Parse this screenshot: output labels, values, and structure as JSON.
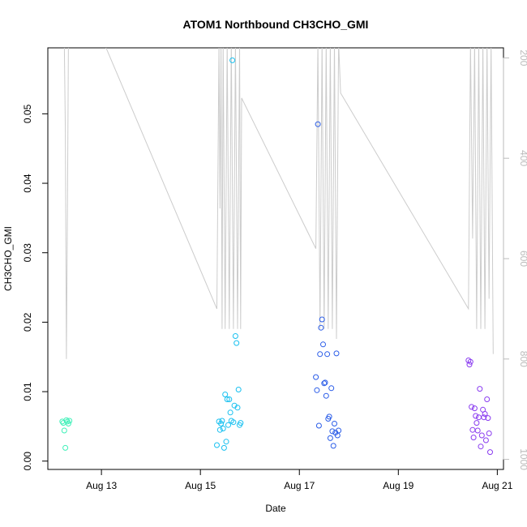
{
  "chart_data": {
    "type": "scatter",
    "title": "ATOM1 Northbound CH3CHO_GMI",
    "xlabel": "Date",
    "ylabel": "CH3CHO_GMI",
    "xlim": [
      "2016-08-11T22:00",
      "2016-08-21T03:00"
    ],
    "ylim": [
      -0.0012,
      0.0595
    ],
    "x_ticks": [
      {
        "value": "2016-08-13",
        "label": "Aug 13"
      },
      {
        "value": "2016-08-15",
        "label": "Aug 15"
      },
      {
        "value": "2016-08-17",
        "label": "Aug 17"
      },
      {
        "value": "2016-08-19",
        "label": "Aug 19"
      },
      {
        "value": "2016-08-21",
        "label": "Aug 21"
      }
    ],
    "y_ticks": [
      {
        "value": 0.0,
        "label": "0.00"
      },
      {
        "value": 0.01,
        "label": "0.01"
      },
      {
        "value": 0.02,
        "label": "0.02"
      },
      {
        "value": 0.03,
        "label": "0.03"
      },
      {
        "value": 0.04,
        "label": "0.04"
      },
      {
        "value": 0.05,
        "label": "0.05"
      }
    ],
    "right_axis": {
      "reversed": true,
      "ylim": [
        180,
        1020
      ],
      "ticks": [
        {
          "value": 200,
          "label": "200"
        },
        {
          "value": 400,
          "label": "400"
        },
        {
          "value": 600,
          "label": "600"
        },
        {
          "value": 800,
          "label": "800"
        },
        {
          "value": 1000,
          "label": "1000"
        }
      ],
      "color": "#bbbbbb"
    },
    "pressure_line": {
      "color": "#cccccc",
      "points": [
        [
          "2016-08-12T06:00",
          168
        ],
        [
          "2016-08-12T06:30",
          345
        ],
        [
          "2016-08-12T07:00",
          800
        ],
        [
          "2016-08-12T07:30",
          500
        ],
        [
          "2016-08-12T08:00",
          168
        ],
        [
          "2016-08-12T08:30",
          168
        ],
        [
          "2016-08-13T01:00",
          168
        ],
        [
          "2016-08-15T08:00",
          700
        ],
        [
          "2016-08-15T09:00",
          168
        ],
        [
          "2016-08-15T09:30",
          500
        ],
        [
          "2016-08-15T10:00",
          168
        ],
        [
          "2016-08-15T10:30",
          740
        ],
        [
          "2016-08-15T11:00",
          168
        ],
        [
          "2016-08-15T12:00",
          740
        ],
        [
          "2016-08-15T13:00",
          168
        ],
        [
          "2016-08-15T14:00",
          740
        ],
        [
          "2016-08-15T15:00",
          168
        ],
        [
          "2016-08-15T16:00",
          740
        ],
        [
          "2016-08-15T17:00",
          168
        ],
        [
          "2016-08-15T18:00",
          740
        ],
        [
          "2016-08-15T19:00",
          168
        ],
        [
          "2016-08-15T19:30",
          740
        ],
        [
          "2016-08-15T20:00",
          280
        ],
        [
          "2016-08-17T08:00",
          580
        ],
        [
          "2016-08-17T09:00",
          168
        ],
        [
          "2016-08-17T10:00",
          740
        ],
        [
          "2016-08-17T11:00",
          168
        ],
        [
          "2016-08-17T12:00",
          740
        ],
        [
          "2016-08-17T13:00",
          168
        ],
        [
          "2016-08-17T14:00",
          740
        ],
        [
          "2016-08-17T15:00",
          168
        ],
        [
          "2016-08-17T16:00",
          740
        ],
        [
          "2016-08-17T17:00",
          168
        ],
        [
          "2016-08-17T18:00",
          760
        ],
        [
          "2016-08-17T19:00",
          168
        ],
        [
          "2016-08-17T20:00",
          270
        ],
        [
          "2016-08-20T10:00",
          700
        ],
        [
          "2016-08-20T11:00",
          168
        ],
        [
          "2016-08-20T12:00",
          560
        ],
        [
          "2016-08-20T13:00",
          168
        ],
        [
          "2016-08-20T14:00",
          740
        ],
        [
          "2016-08-20T15:00",
          168
        ],
        [
          "2016-08-20T16:00",
          740
        ],
        [
          "2016-08-20T17:00",
          168
        ],
        [
          "2016-08-20T18:00",
          740
        ],
        [
          "2016-08-20T19:00",
          168
        ],
        [
          "2016-08-20T20:00",
          680
        ],
        [
          "2016-08-20T21:00",
          168
        ],
        [
          "2016-08-20T22:00",
          790
        ]
      ]
    },
    "series": [
      {
        "color": "#3ff0b8",
        "points": [
          [
            "2016-08-12T05:00",
            0.0057
          ],
          [
            "2016-08-12T05:30",
            0.0055
          ],
          [
            "2016-08-12T06:00",
            0.0044
          ],
          [
            "2016-08-12T06:30",
            0.0019
          ],
          [
            "2016-08-12T07:00",
            0.0059
          ],
          [
            "2016-08-12T07:30",
            0.0057
          ],
          [
            "2016-08-12T08:00",
            0.0054
          ],
          [
            "2016-08-12T08:30",
            0.0058
          ]
        ]
      },
      {
        "color": "#18c0f0",
        "points": [
          [
            "2016-08-15T08:00",
            0.0023
          ],
          [
            "2016-08-15T09:00",
            0.0057
          ],
          [
            "2016-08-15T09:30",
            0.0045
          ],
          [
            "2016-08-15T10:00",
            0.0054
          ],
          [
            "2016-08-15T10:30",
            0.0058
          ],
          [
            "2016-08-15T11:00",
            0.0047
          ],
          [
            "2016-08-15T11:30",
            0.0019
          ],
          [
            "2016-08-15T12:00",
            0.0096
          ],
          [
            "2016-08-15T12:30",
            0.0028
          ],
          [
            "2016-08-15T13:00",
            0.0089
          ],
          [
            "2016-08-15T13:30",
            0.0052
          ],
          [
            "2016-08-15T14:00",
            0.0089
          ],
          [
            "2016-08-15T14:30",
            0.007
          ],
          [
            "2016-08-15T15:00",
            0.0058
          ],
          [
            "2016-08-15T15:30",
            0.0577
          ],
          [
            "2016-08-15T16:00",
            0.0056
          ],
          [
            "2016-08-15T16:30",
            0.008
          ],
          [
            "2016-08-15T17:00",
            0.018
          ],
          [
            "2016-08-15T17:30",
            0.017
          ],
          [
            "2016-08-15T18:00",
            0.0077
          ],
          [
            "2016-08-15T18:30",
            0.0103
          ],
          [
            "2016-08-15T19:00",
            0.0052
          ],
          [
            "2016-08-15T19:30",
            0.0055
          ]
        ]
      },
      {
        "color": "#2a5ce8",
        "points": [
          [
            "2016-08-17T08:00",
            0.0121
          ],
          [
            "2016-08-17T08:30",
            0.0102
          ],
          [
            "2016-08-17T09:00",
            0.0485
          ],
          [
            "2016-08-17T09:30",
            0.0051
          ],
          [
            "2016-08-17T10:00",
            0.0154
          ],
          [
            "2016-08-17T10:30",
            0.0192
          ],
          [
            "2016-08-17T11:00",
            0.0204
          ],
          [
            "2016-08-17T11:30",
            0.0168
          ],
          [
            "2016-08-17T12:00",
            0.0112
          ],
          [
            "2016-08-17T12:30",
            0.0113
          ],
          [
            "2016-08-17T13:00",
            0.0094
          ],
          [
            "2016-08-17T13:30",
            0.0154
          ],
          [
            "2016-08-17T14:00",
            0.0061
          ],
          [
            "2016-08-17T14:30",
            0.0064
          ],
          [
            "2016-08-17T15:00",
            0.0033
          ],
          [
            "2016-08-17T15:30",
            0.0105
          ],
          [
            "2016-08-17T16:00",
            0.0043
          ],
          [
            "2016-08-17T16:30",
            0.0022
          ],
          [
            "2016-08-17T17:00",
            0.0054
          ],
          [
            "2016-08-17T17:30",
            0.0041
          ],
          [
            "2016-08-17T18:00",
            0.0155
          ],
          [
            "2016-08-17T18:30",
            0.0037
          ],
          [
            "2016-08-17T19:00",
            0.0044
          ]
        ]
      },
      {
        "color": "#8a3cf0",
        "points": [
          [
            "2016-08-20T10:00",
            0.0145
          ],
          [
            "2016-08-20T10:30",
            0.0139
          ],
          [
            "2016-08-20T11:00",
            0.0143
          ],
          [
            "2016-08-20T11:30",
            0.0078
          ],
          [
            "2016-08-20T12:00",
            0.0045
          ],
          [
            "2016-08-20T12:30",
            0.0034
          ],
          [
            "2016-08-20T13:00",
            0.0076
          ],
          [
            "2016-08-20T13:30",
            0.0065
          ],
          [
            "2016-08-20T14:00",
            0.0055
          ],
          [
            "2016-08-20T14:30",
            0.0044
          ],
          [
            "2016-08-20T15:00",
            0.0063
          ],
          [
            "2016-08-20T15:30",
            0.0104
          ],
          [
            "2016-08-20T16:00",
            0.0021
          ],
          [
            "2016-08-20T16:30",
            0.0037
          ],
          [
            "2016-08-20T17:00",
            0.0074
          ],
          [
            "2016-08-20T17:30",
            0.0063
          ],
          [
            "2016-08-20T18:00",
            0.0068
          ],
          [
            "2016-08-20T18:30",
            0.003
          ],
          [
            "2016-08-20T19:00",
            0.0089
          ],
          [
            "2016-08-20T19:30",
            0.0062
          ],
          [
            "2016-08-20T20:00",
            0.004
          ],
          [
            "2016-08-20T20:30",
            0.0013
          ]
        ]
      }
    ]
  }
}
